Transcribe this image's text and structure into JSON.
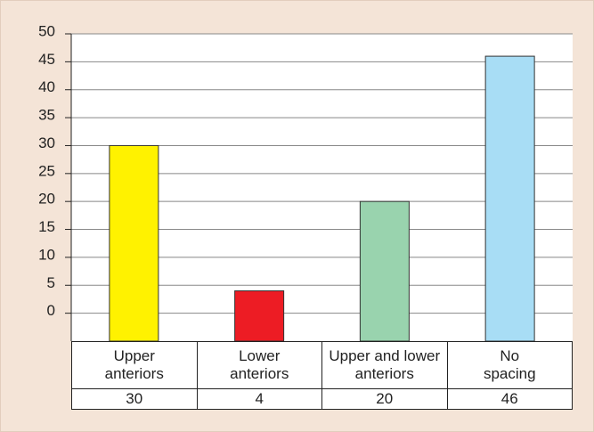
{
  "chart_data": {
    "type": "bar",
    "categories": [
      "Upper\nanteriors",
      "Lower\nanteriors",
      "Upper and lower\nanteriors",
      "No\nspacing"
    ],
    "values": [
      30,
      4,
      20,
      46
    ],
    "colors": [
      "#fff200",
      "#ed1c24",
      "#99d3ae",
      "#a8ddf5"
    ],
    "ylim": [
      -5,
      50
    ],
    "yticks": [
      0,
      5,
      10,
      15,
      20,
      25,
      30,
      35,
      40,
      45,
      50
    ],
    "grid": true
  }
}
